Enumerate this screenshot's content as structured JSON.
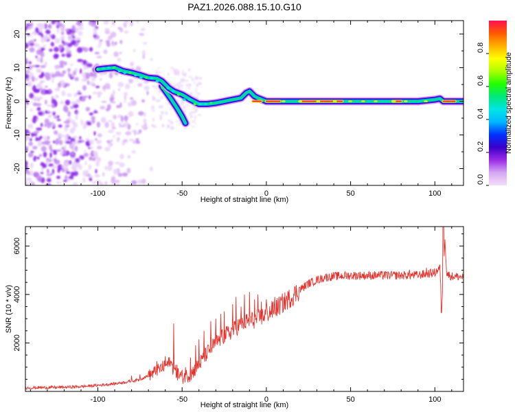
{
  "title": "PAZ1.2026.088.15.10.G10",
  "chart_data": [
    {
      "type": "heatmap",
      "name": "spectrogram",
      "xlabel": "Height of straight line (km)",
      "ylabel": "Frequency (Hz)",
      "xlim": [
        -143,
        117
      ],
      "ylim": [
        -25,
        24
      ],
      "xticks": [
        -100,
        -50,
        0,
        50,
        100
      ],
      "yticks": [
        -20,
        -10,
        0,
        10,
        20
      ],
      "ridge_center": [
        [
          -100,
          9.5
        ],
        [
          -95,
          9.8
        ],
        [
          -90,
          10.0
        ],
        [
          -85,
          9.0
        ],
        [
          -80,
          8.5
        ],
        [
          -75,
          7.8
        ],
        [
          -70,
          7.0
        ],
        [
          -65,
          6.8
        ],
        [
          -62,
          6.0
        ],
        [
          -58,
          4.0
        ],
        [
          -55,
          3.0
        ],
        [
          -50,
          2.0
        ],
        [
          -45,
          0.5
        ],
        [
          -40,
          -0.8
        ],
        [
          -35,
          -0.8
        ],
        [
          -30,
          -0.5
        ],
        [
          -25,
          0.0
        ],
        [
          -20,
          0.5
        ],
        [
          -15,
          1.0
        ],
        [
          -12,
          2.5
        ],
        [
          -10,
          3.0
        ],
        [
          -7,
          1.5
        ],
        [
          -5,
          1.0
        ],
        [
          0,
          0.0
        ],
        [
          10,
          0.0
        ],
        [
          20,
          0.0
        ],
        [
          30,
          0.0
        ],
        [
          40,
          0.0
        ],
        [
          50,
          0.0
        ],
        [
          60,
          0.0
        ],
        [
          70,
          0.0
        ],
        [
          80,
          0.0
        ],
        [
          90,
          0.0
        ],
        [
          100,
          0.5
        ],
        [
          103,
          0.8
        ],
        [
          105,
          0.0
        ],
        [
          110,
          0.0
        ],
        [
          117,
          0.0
        ]
      ],
      "ridge_branch": [
        [
          -62,
          4.5
        ],
        [
          -57,
          1.0
        ],
        [
          -53,
          -2.0
        ],
        [
          -50,
          -4.5
        ],
        [
          -48,
          -6.5
        ]
      ],
      "colorbar": {
        "label": "Normalized spectral amplitude",
        "range": [
          0.0,
          1.0
        ],
        "ticks": [
          0.0,
          0.2,
          0.4,
          0.6,
          0.8
        ],
        "tick_labels": [
          "0.0",
          "0.2",
          "0.4",
          "0.6",
          "0.8"
        ],
        "colors": [
          "#f3ddf9",
          "#d6a8f2",
          "#9b2be8",
          "#3a00c9",
          "#0030ff",
          "#00b7ff",
          "#00e6e6",
          "#00e87a",
          "#20ff00",
          "#aaff00",
          "#ffff00",
          "#ffb000",
          "#ff5a00",
          "#ff1050"
        ]
      }
    },
    {
      "type": "line",
      "name": "snr",
      "xlabel": "Height of straight line (km)",
      "ylabel": "SNR (10 * v/v)",
      "xlim": [
        -143,
        117
      ],
      "ylim": [
        0,
        6800
      ],
      "xticks": [
        -100,
        -50,
        0,
        50,
        100
      ],
      "yticks": [
        2000,
        4000,
        6000
      ],
      "color": "#e8302a",
      "x": [
        -143,
        -130,
        -120,
        -110,
        -100,
        -90,
        -80,
        -75,
        -70,
        -65,
        -60,
        -57,
        -55,
        -53,
        -50,
        -45,
        -40,
        -35,
        -30,
        -25,
        -20,
        -15,
        -10,
        -5,
        0,
        5,
        10,
        15,
        20,
        25,
        30,
        35,
        40,
        50,
        60,
        70,
        80,
        90,
        95,
        100,
        103,
        104,
        105,
        106,
        107,
        110,
        117
      ],
      "y": [
        150,
        160,
        170,
        200,
        250,
        320,
        420,
        500,
        650,
        850,
        1050,
        1200,
        900,
        750,
        600,
        700,
        1100,
        1600,
        2000,
        2300,
        2500,
        2800,
        2900,
        3000,
        3200,
        3400,
        3650,
        3900,
        4200,
        4450,
        4600,
        4700,
        4750,
        4780,
        4780,
        4790,
        4790,
        4800,
        4850,
        4900,
        5100,
        3400,
        4900,
        6400,
        4850,
        4750,
        4720
      ],
      "spikes": [
        [
          -80,
          650
        ],
        [
          -75,
          700
        ],
        [
          -70,
          760
        ],
        [
          -65,
          1250
        ],
        [
          -60,
          1450
        ],
        [
          -57,
          1100
        ],
        [
          -55,
          2800
        ],
        [
          -53,
          1100
        ],
        [
          -48,
          1000
        ],
        [
          -45,
          1400
        ],
        [
          -42,
          1900
        ],
        [
          -40,
          2150
        ],
        [
          -37,
          2500
        ],
        [
          -33,
          2900
        ],
        [
          -30,
          3000
        ],
        [
          -27,
          3200
        ],
        [
          -25,
          3300
        ],
        [
          -20,
          3600
        ],
        [
          -18,
          3900
        ],
        [
          -15,
          3500
        ],
        [
          -13,
          4000
        ],
        [
          -10,
          4100
        ],
        [
          -7,
          3800
        ],
        [
          -5,
          4000
        ],
        [
          -3,
          3700
        ],
        [
          0,
          3800
        ],
        [
          5,
          3900
        ],
        [
          12,
          3950
        ],
        [
          20,
          4300
        ],
        [
          35,
          4800
        ],
        [
          55,
          4900
        ],
        [
          70,
          4950
        ],
        [
          85,
          5000
        ],
        [
          95,
          5100
        ]
      ]
    }
  ]
}
